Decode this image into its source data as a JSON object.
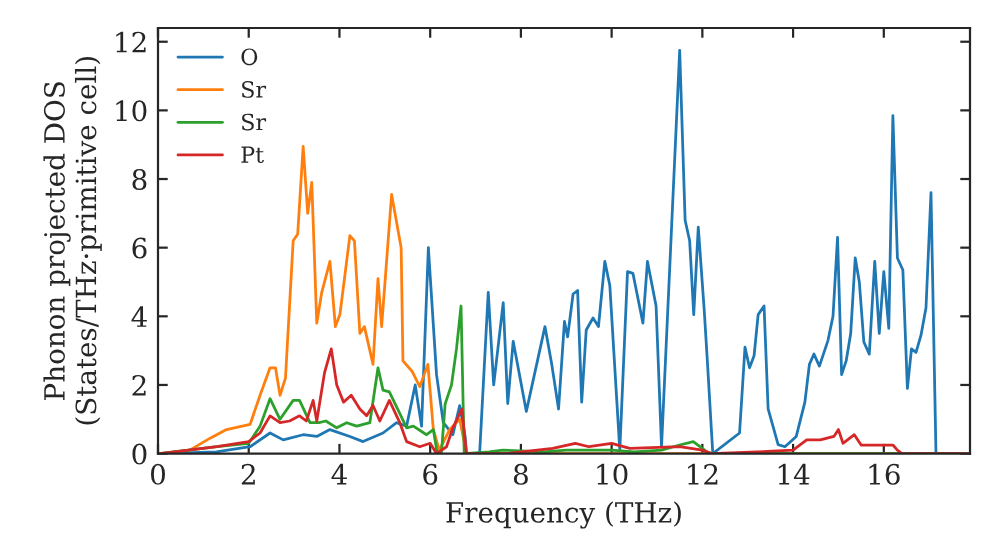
{
  "chart_data": {
    "type": "line",
    "xlabel": "Frequency (THz)",
    "ylabel": "Phonon projected DOS\n(States/THz·primitive cell)",
    "xlim": [
      0,
      17.9
    ],
    "ylim": [
      0,
      12.4
    ],
    "xticks": [
      0,
      2,
      4,
      6,
      8,
      10,
      12,
      14,
      16
    ],
    "yticks": [
      0,
      2,
      4,
      6,
      8,
      10,
      12
    ],
    "grid": false,
    "legend": "top left",
    "marker": "none",
    "line_style": "solid",
    "series": [
      {
        "name": "O",
        "color": "#1f77b4",
        "x": [
          0.04,
          1.29,
          2.03,
          2.47,
          2.76,
          3.2,
          3.5,
          3.79,
          4.23,
          4.52,
          4.96,
          5.26,
          5.48,
          5.67,
          5.81,
          5.96,
          6.14,
          6.29,
          6.5,
          6.65,
          6.77,
          6.8,
          7.09,
          7.28,
          7.4,
          7.61,
          7.71,
          7.83,
          8.12,
          8.53,
          8.68,
          8.83,
          8.96,
          9.03,
          9.15,
          9.25,
          9.34,
          9.44,
          9.59,
          9.71,
          9.85,
          9.96,
          10.18,
          10.35,
          10.47,
          10.69,
          10.79,
          10.98,
          11.1,
          11.5,
          11.62,
          11.72,
          11.81,
          11.91,
          12.04,
          12.11,
          12.23,
          12.82,
          12.94,
          13.04,
          13.14,
          13.23,
          13.36,
          13.45,
          13.67,
          13.82,
          14.07,
          14.26,
          14.36,
          14.46,
          14.58,
          14.77,
          14.88,
          14.98,
          15.07,
          15.17,
          15.27,
          15.37,
          15.46,
          15.56,
          15.68,
          15.8,
          15.9,
          16.0,
          16.11,
          16.2,
          16.3,
          16.42,
          16.52,
          16.61,
          16.71,
          16.82,
          16.93,
          17.04,
          17.15
        ],
        "values": [
          0,
          0.05,
          0.2,
          0.6,
          0.4,
          0.55,
          0.5,
          0.7,
          0.5,
          0.35,
          0.6,
          0.9,
          0.8,
          2.0,
          0.8,
          6.0,
          2.3,
          0.9,
          0.55,
          1.4,
          0.5,
          0,
          0,
          4.7,
          2.0,
          4.4,
          1.46,
          3.27,
          1.23,
          3.7,
          2.6,
          1.3,
          3.85,
          3.4,
          4.65,
          4.75,
          1.5,
          3.6,
          3.95,
          3.7,
          5.6,
          4.9,
          0.1,
          5.3,
          5.25,
          3.8,
          5.6,
          4.3,
          0.2,
          11.75,
          6.8,
          6.2,
          4.05,
          6.6,
          4.2,
          2.7,
          0,
          0.6,
          3.1,
          2.5,
          2.85,
          4.05,
          4.3,
          1.3,
          0.26,
          0.2,
          0.5,
          1.5,
          2.6,
          2.9,
          2.55,
          3.3,
          4.0,
          6.3,
          2.3,
          2.7,
          3.5,
          5.7,
          5.0,
          3.25,
          2.9,
          5.6,
          3.5,
          5.3,
          3.65,
          9.85,
          5.7,
          5.35,
          1.9,
          3.05,
          2.95,
          3.45,
          4.25,
          7.6,
          0
        ]
      },
      {
        "name": "Sr",
        "color": "#ff7f0e",
        "x": [
          0.04,
          0.7,
          1.15,
          1.51,
          2.03,
          2.25,
          2.47,
          2.59,
          2.69,
          2.81,
          2.98,
          3.08,
          3.2,
          3.3,
          3.39,
          3.5,
          3.61,
          3.79,
          3.91,
          4.01,
          4.23,
          4.33,
          4.45,
          4.55,
          4.74,
          4.85,
          4.93,
          5.15,
          5.36,
          5.4,
          5.6,
          5.77,
          5.95,
          6.07,
          6.2,
          6.43,
          6.65,
          6.8,
          17.9
        ],
        "values": [
          0,
          0.1,
          0.45,
          0.7,
          0.85,
          1.7,
          2.5,
          2.5,
          1.7,
          2.2,
          6.2,
          6.4,
          8.95,
          7.0,
          7.9,
          3.8,
          4.7,
          5.6,
          3.7,
          4.05,
          6.35,
          6.2,
          3.5,
          3.7,
          2.6,
          5.1,
          3.7,
          7.55,
          6.0,
          2.7,
          2.4,
          1.95,
          2.6,
          0.7,
          0.1,
          0.7,
          1.0,
          0,
          0
        ]
      },
      {
        "name": "Sr",
        "color": "#2ca02c",
        "x": [
          0.04,
          1.3,
          2.0,
          2.25,
          2.47,
          2.69,
          2.98,
          3.12,
          3.35,
          3.55,
          3.7,
          3.94,
          4.16,
          4.38,
          4.67,
          4.85,
          4.96,
          5.1,
          5.3,
          5.48,
          5.63,
          5.92,
          6.07,
          6.15,
          6.25,
          6.33,
          6.47,
          6.58,
          6.68,
          6.75,
          7.3,
          7.6,
          8.5,
          9.0,
          10.0,
          10.5,
          11.1,
          11.5,
          11.8,
          12.1,
          12.2,
          17.9
        ],
        "values": [
          0,
          0.2,
          0.3,
          0.8,
          1.6,
          1.0,
          1.55,
          1.55,
          0.9,
          0.9,
          0.95,
          0.75,
          0.9,
          0.8,
          0.9,
          2.5,
          1.85,
          1.8,
          1.25,
          0.75,
          0.8,
          0.55,
          0.7,
          0.05,
          0.05,
          1.45,
          2.0,
          3.05,
          4.3,
          0,
          0.05,
          0.1,
          0.05,
          0.1,
          0.1,
          0.05,
          0.1,
          0.25,
          0.35,
          0.05,
          0,
          0
        ]
      },
      {
        "name": "Pt",
        "color": "#d62728",
        "x": [
          0.04,
          1.3,
          2.0,
          2.25,
          2.47,
          2.69,
          2.9,
          3.12,
          3.27,
          3.42,
          3.5,
          3.67,
          3.82,
          3.94,
          4.09,
          4.26,
          4.45,
          4.6,
          4.74,
          4.89,
          5.1,
          5.33,
          5.48,
          5.77,
          6.0,
          6.14,
          6.36,
          6.5,
          6.7,
          6.8,
          7.7,
          8.7,
          9.2,
          9.5,
          10.0,
          10.4,
          11.5,
          12.0,
          12.2,
          13.2,
          14.0,
          14.3,
          14.6,
          14.9,
          15.0,
          15.1,
          15.35,
          15.5,
          15.8,
          16.2,
          16.3,
          16.4,
          17.9
        ],
        "values": [
          0,
          0.2,
          0.35,
          0.6,
          1.1,
          0.9,
          0.95,
          1.1,
          0.95,
          1.55,
          0.95,
          2.35,
          3.05,
          2.0,
          1.5,
          1.7,
          1.3,
          1.1,
          1.4,
          0.95,
          1.55,
          0.9,
          0.35,
          0.2,
          0.3,
          0,
          0.2,
          0.75,
          1.3,
          0,
          0,
          0.15,
          0.3,
          0.2,
          0.3,
          0.15,
          0.2,
          0.1,
          0,
          0.05,
          0.1,
          0.4,
          0.4,
          0.5,
          0.7,
          0.3,
          0.55,
          0.25,
          0.25,
          0.25,
          0.1,
          0,
          0
        ]
      }
    ]
  }
}
